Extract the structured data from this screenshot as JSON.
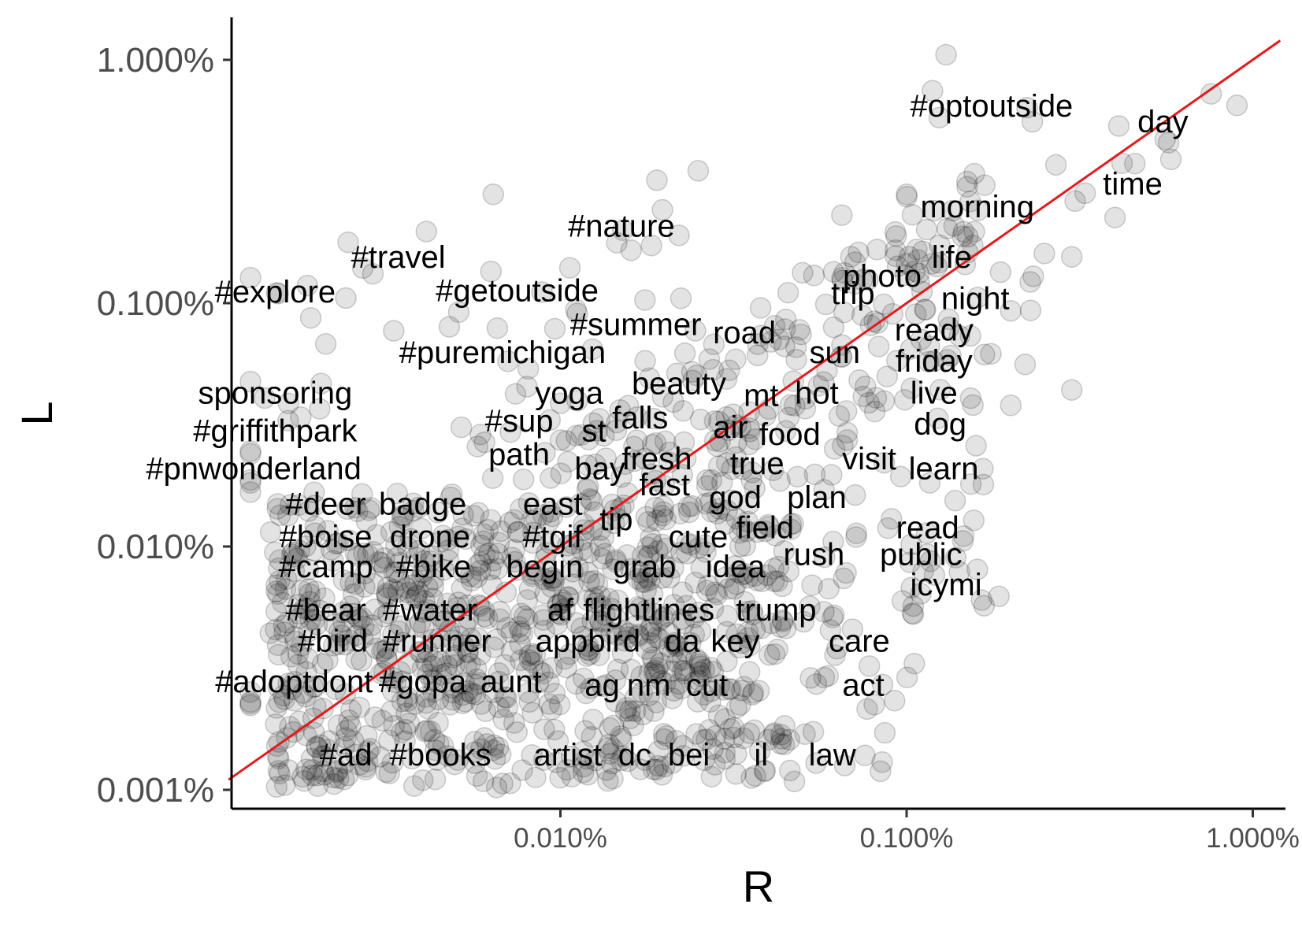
{
  "chart_data": {
    "type": "scatter",
    "title": "",
    "xlabel": "R",
    "ylabel": "L",
    "x_scale": "log10",
    "y_scale": "log10",
    "xlim": [
      "0.0011%",
      "1.2%"
    ],
    "ylim": [
      "0.0008%",
      "1.6%"
    ],
    "x_ticks": [
      "0.010%",
      "0.100%",
      "1.000%"
    ],
    "y_ticks": [
      "0.001%",
      "0.010%",
      "0.100%",
      "1.000%"
    ],
    "grid": false,
    "legend": "none",
    "point_color": "#000000",
    "line_color": "#e31a1c",
    "reference_line": {
      "from": [
        "0.0011%",
        "0.0011%"
      ],
      "to": [
        "1.2%",
        "1.2%"
      ]
    },
    "labels": [
      {
        "text": "#optoutside",
        "x": 0.176,
        "y": 0.65
      },
      {
        "text": "day",
        "x": 0.55,
        "y": 0.56
      },
      {
        "text": "time",
        "x": 0.45,
        "y": 0.31
      },
      {
        "text": "morning",
        "x": 0.16,
        "y": 0.25
      },
      {
        "text": "#nature",
        "x": 0.015,
        "y": 0.208
      },
      {
        "text": "#travel",
        "x": 0.0034,
        "y": 0.155
      },
      {
        "text": "life",
        "x": 0.135,
        "y": 0.155
      },
      {
        "text": "photo",
        "x": 0.085,
        "y": 0.13
      },
      {
        "text": "#explore",
        "x": 0.0015,
        "y": 0.112
      },
      {
        "text": "#getoutside",
        "x": 0.0075,
        "y": 0.113
      },
      {
        "text": "trip",
        "x": 0.07,
        "y": 0.11
      },
      {
        "text": "night",
        "x": 0.158,
        "y": 0.105
      },
      {
        "text": "#summer",
        "x": 0.0165,
        "y": 0.082
      },
      {
        "text": "road",
        "x": 0.034,
        "y": 0.076
      },
      {
        "text": "ready",
        "x": 0.12,
        "y": 0.078
      },
      {
        "text": "#puremichigan",
        "x": 0.0068,
        "y": 0.063
      },
      {
        "text": "sun",
        "x": 0.062,
        "y": 0.063
      },
      {
        "text": "friday",
        "x": 0.12,
        "y": 0.058
      },
      {
        "text": "sponsoring",
        "x": 0.0015,
        "y": 0.043
      },
      {
        "text": "yoga",
        "x": 0.0106,
        "y": 0.043
      },
      {
        "text": "beauty",
        "x": 0.022,
        "y": 0.047
      },
      {
        "text": "mt",
        "x": 0.038,
        "y": 0.042
      },
      {
        "text": "hot",
        "x": 0.055,
        "y": 0.043
      },
      {
        "text": "live",
        "x": 0.12,
        "y": 0.043
      },
      {
        "text": "#sup",
        "x": 0.0076,
        "y": 0.033
      },
      {
        "text": "falls",
        "x": 0.017,
        "y": 0.034
      },
      {
        "text": "dog",
        "x": 0.125,
        "y": 0.032
      },
      {
        "text": "#griffithpark",
        "x": 0.0015,
        "y": 0.03
      },
      {
        "text": "st",
        "x": 0.0125,
        "y": 0.03
      },
      {
        "text": "air",
        "x": 0.031,
        "y": 0.031
      },
      {
        "text": "food",
        "x": 0.046,
        "y": 0.029
      },
      {
        "text": "path",
        "x": 0.0076,
        "y": 0.024
      },
      {
        "text": "fresh",
        "x": 0.019,
        "y": 0.023
      },
      {
        "text": "true",
        "x": 0.037,
        "y": 0.022
      },
      {
        "text": "visit",
        "x": 0.078,
        "y": 0.023
      },
      {
        "text": "#pnwonderland",
        "x": 0.0013,
        "y": 0.021
      },
      {
        "text": "bay",
        "x": 0.013,
        "y": 0.021
      },
      {
        "text": "learn",
        "x": 0.128,
        "y": 0.021
      },
      {
        "text": "fast",
        "x": 0.02,
        "y": 0.018
      },
      {
        "text": "god",
        "x": 0.032,
        "y": 0.016
      },
      {
        "text": "plan",
        "x": 0.055,
        "y": 0.016
      },
      {
        "text": "#deer",
        "x": 0.0021,
        "y": 0.015
      },
      {
        "text": "badge",
        "x": 0.004,
        "y": 0.015
      },
      {
        "text": "east",
        "x": 0.0095,
        "y": 0.015
      },
      {
        "text": "tip",
        "x": 0.0145,
        "y": 0.013
      },
      {
        "text": "field",
        "x": 0.039,
        "y": 0.012
      },
      {
        "text": "read",
        "x": 0.115,
        "y": 0.012
      },
      {
        "text": "#boise",
        "x": 0.0021,
        "y": 0.011
      },
      {
        "text": "drone",
        "x": 0.0042,
        "y": 0.011
      },
      {
        "text": "#tgif",
        "x": 0.0095,
        "y": 0.011
      },
      {
        "text": "cute",
        "x": 0.025,
        "y": 0.011
      },
      {
        "text": "rush",
        "x": 0.054,
        "y": 0.0093
      },
      {
        "text": "public",
        "x": 0.11,
        "y": 0.0093
      },
      {
        "text": "#camp",
        "x": 0.0021,
        "y": 0.0083
      },
      {
        "text": "#bike",
        "x": 0.0043,
        "y": 0.0083
      },
      {
        "text": "begin",
        "x": 0.009,
        "y": 0.0083
      },
      {
        "text": "grab",
        "x": 0.0175,
        "y": 0.0083
      },
      {
        "text": "idea",
        "x": 0.032,
        "y": 0.0083
      },
      {
        "text": "icymi",
        "x": 0.13,
        "y": 0.007
      },
      {
        "text": "#bear",
        "x": 0.0021,
        "y": 0.0055
      },
      {
        "text": "#water",
        "x": 0.0042,
        "y": 0.0055
      },
      {
        "text": "af",
        "x": 0.01,
        "y": 0.0055
      },
      {
        "text": "flightlines",
        "x": 0.018,
        "y": 0.0055
      },
      {
        "text": "trump",
        "x": 0.042,
        "y": 0.0055
      },
      {
        "text": "#bird",
        "x": 0.0022,
        "y": 0.0041
      },
      {
        "text": "#runner",
        "x": 0.0044,
        "y": 0.0041
      },
      {
        "text": "appbird",
        "x": 0.012,
        "y": 0.0041
      },
      {
        "text": "da",
        "x": 0.0225,
        "y": 0.0041
      },
      {
        "text": "key",
        "x": 0.032,
        "y": 0.0041
      },
      {
        "text": "care",
        "x": 0.073,
        "y": 0.0041
      },
      {
        "text": "#adoptdont",
        "x": 0.0017,
        "y": 0.0028
      },
      {
        "text": "#gopa",
        "x": 0.004,
        "y": 0.0028
      },
      {
        "text": "aunt",
        "x": 0.0072,
        "y": 0.0028
      },
      {
        "text": "ag",
        "x": 0.0132,
        "y": 0.0027
      },
      {
        "text": "nm",
        "x": 0.018,
        "y": 0.0027
      },
      {
        "text": "cut",
        "x": 0.0265,
        "y": 0.0027
      },
      {
        "text": "act",
        "x": 0.075,
        "y": 0.0027
      },
      {
        "text": "#ad",
        "x": 0.0024,
        "y": 0.0014
      },
      {
        "text": "#books",
        "x": 0.0045,
        "y": 0.0014
      },
      {
        "text": "artist",
        "x": 0.0105,
        "y": 0.0014
      },
      {
        "text": "dc",
        "x": 0.0164,
        "y": 0.0014
      },
      {
        "text": "bei",
        "x": 0.0235,
        "y": 0.0014
      },
      {
        "text": "il",
        "x": 0.038,
        "y": 0.0014
      },
      {
        "text": "law",
        "x": 0.061,
        "y": 0.0014
      }
    ],
    "outlier_points": [
      {
        "x": 0.13,
        "y": 1.05
      },
      {
        "x": 0.9,
        "y": 0.65
      },
      {
        "x": 0.58,
        "y": 0.39
      },
      {
        "x": 0.27,
        "y": 0.37
      },
      {
        "x": 0.025,
        "y": 0.35
      },
      {
        "x": 0.019,
        "y": 0.32
      },
      {
        "x": 0.0064,
        "y": 0.28
      },
      {
        "x": 0.1,
        "y": 0.28
      },
      {
        "x": 0.12,
        "y": 0.24
      },
      {
        "x": 0.4,
        "y": 0.225
      },
      {
        "x": 0.065,
        "y": 0.23
      },
      {
        "x": 0.022,
        "y": 0.19
      },
      {
        "x": 0.016,
        "y": 0.165
      },
      {
        "x": 0.3,
        "y": 0.155
      },
      {
        "x": 0.25,
        "y": 0.16
      },
      {
        "x": 0.054,
        "y": 0.13
      },
      {
        "x": 0.0063,
        "y": 0.135
      },
      {
        "x": 0.2,
        "y": 0.093
      },
      {
        "x": 0.0019,
        "y": 0.087
      },
      {
        "x": 0.0024,
        "y": 0.105
      },
      {
        "x": 0.0033,
        "y": 0.077
      },
      {
        "x": 0.0021,
        "y": 0.068
      },
      {
        "x": 0.22,
        "y": 0.056
      },
      {
        "x": 0.3,
        "y": 0.044
      },
      {
        "x": 0.2,
        "y": 0.038
      },
      {
        "x": 0.11,
        "y": 0.0064
      },
      {
        "x": 0.085,
        "y": 0.0013
      },
      {
        "x": 0.046,
        "y": 0.0012
      },
      {
        "x": 0.039,
        "y": 0.0012
      }
    ]
  }
}
